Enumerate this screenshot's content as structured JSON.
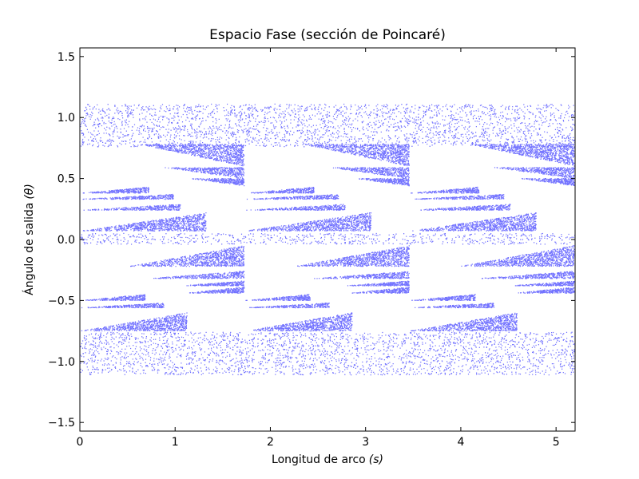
{
  "chart_data": {
    "type": "scatter",
    "title": "Espacio Fase (sección de Poincaré)",
    "xlabel": "Longitud de arco",
    "xlabel_symbol": "(s)",
    "ylabel": "Ángulo de salida",
    "ylabel_symbol": "(θ)",
    "xlim": [
      0,
      5.2
    ],
    "ylim": [
      -1.5708,
      1.5708
    ],
    "x_ticks": [
      0,
      1,
      2,
      3,
      4,
      5
    ],
    "y_ticks": [
      -1.5,
      -1.0,
      -0.5,
      0.0,
      0.5,
      1.0,
      1.5
    ],
    "x_tick_labels": [
      "0",
      "1",
      "2",
      "3",
      "4",
      "5"
    ],
    "y_tick_labels": [
      "−1.5",
      "−1.0",
      "−0.5",
      "0.0",
      "0.5",
      "1.0",
      "1.5"
    ],
    "grid": false,
    "marker": "dots",
    "series": [
      {
        "color": "#0000ff",
        "period": 1.7333,
        "periods": 3,
        "bands": [
          {
            "y0": 0.76,
            "y1": 1.11
          },
          {
            "y0": -1.11,
            "y1": -0.76
          },
          {
            "y0": -0.04,
            "y1": 0.05
          }
        ],
        "wedges": [
          {
            "y_start": 0.6,
            "y_end": 0.78,
            "x_start": 0.62,
            "x_end": 1.72
          },
          {
            "y_start": 0.5,
            "y_end": 0.59,
            "x_start": 0.88,
            "x_end": 1.72
          },
          {
            "y_start": 0.44,
            "y_end": 0.5,
            "x_start": 1.15,
            "x_end": 1.72
          },
          {
            "y_start": 0.43,
            "y_end": 0.38,
            "x_start": 0.0,
            "x_end": 0.72
          },
          {
            "y_start": 0.37,
            "y_end": 0.33,
            "x_start": 0.0,
            "x_end": 0.98
          },
          {
            "y_start": 0.29,
            "y_end": 0.24,
            "x_start": 0.0,
            "x_end": 1.05
          },
          {
            "y_start": 0.22,
            "y_end": 0.07,
            "x_start": 0.0,
            "x_end": 1.32
          },
          {
            "y_start": -0.05,
            "y_end": -0.22,
            "x_start": 0.52,
            "x_end": 1.72
          },
          {
            "y_start": -0.26,
            "y_end": -0.32,
            "x_start": 0.72,
            "x_end": 1.72
          },
          {
            "y_start": -0.34,
            "y_end": -0.38,
            "x_start": 1.05,
            "x_end": 1.72
          },
          {
            "y_start": -0.39,
            "y_end": -0.44,
            "x_start": 1.1,
            "x_end": 1.72
          },
          {
            "y_start": -0.45,
            "y_end": -0.5,
            "x_start": 0.0,
            "x_end": 0.68
          },
          {
            "y_start": -0.52,
            "y_end": -0.56,
            "x_start": 0.0,
            "x_end": 0.88
          },
          {
            "y_start": -0.6,
            "y_end": -0.75,
            "x_start": 0.0,
            "x_end": 1.12
          }
        ]
      }
    ]
  }
}
